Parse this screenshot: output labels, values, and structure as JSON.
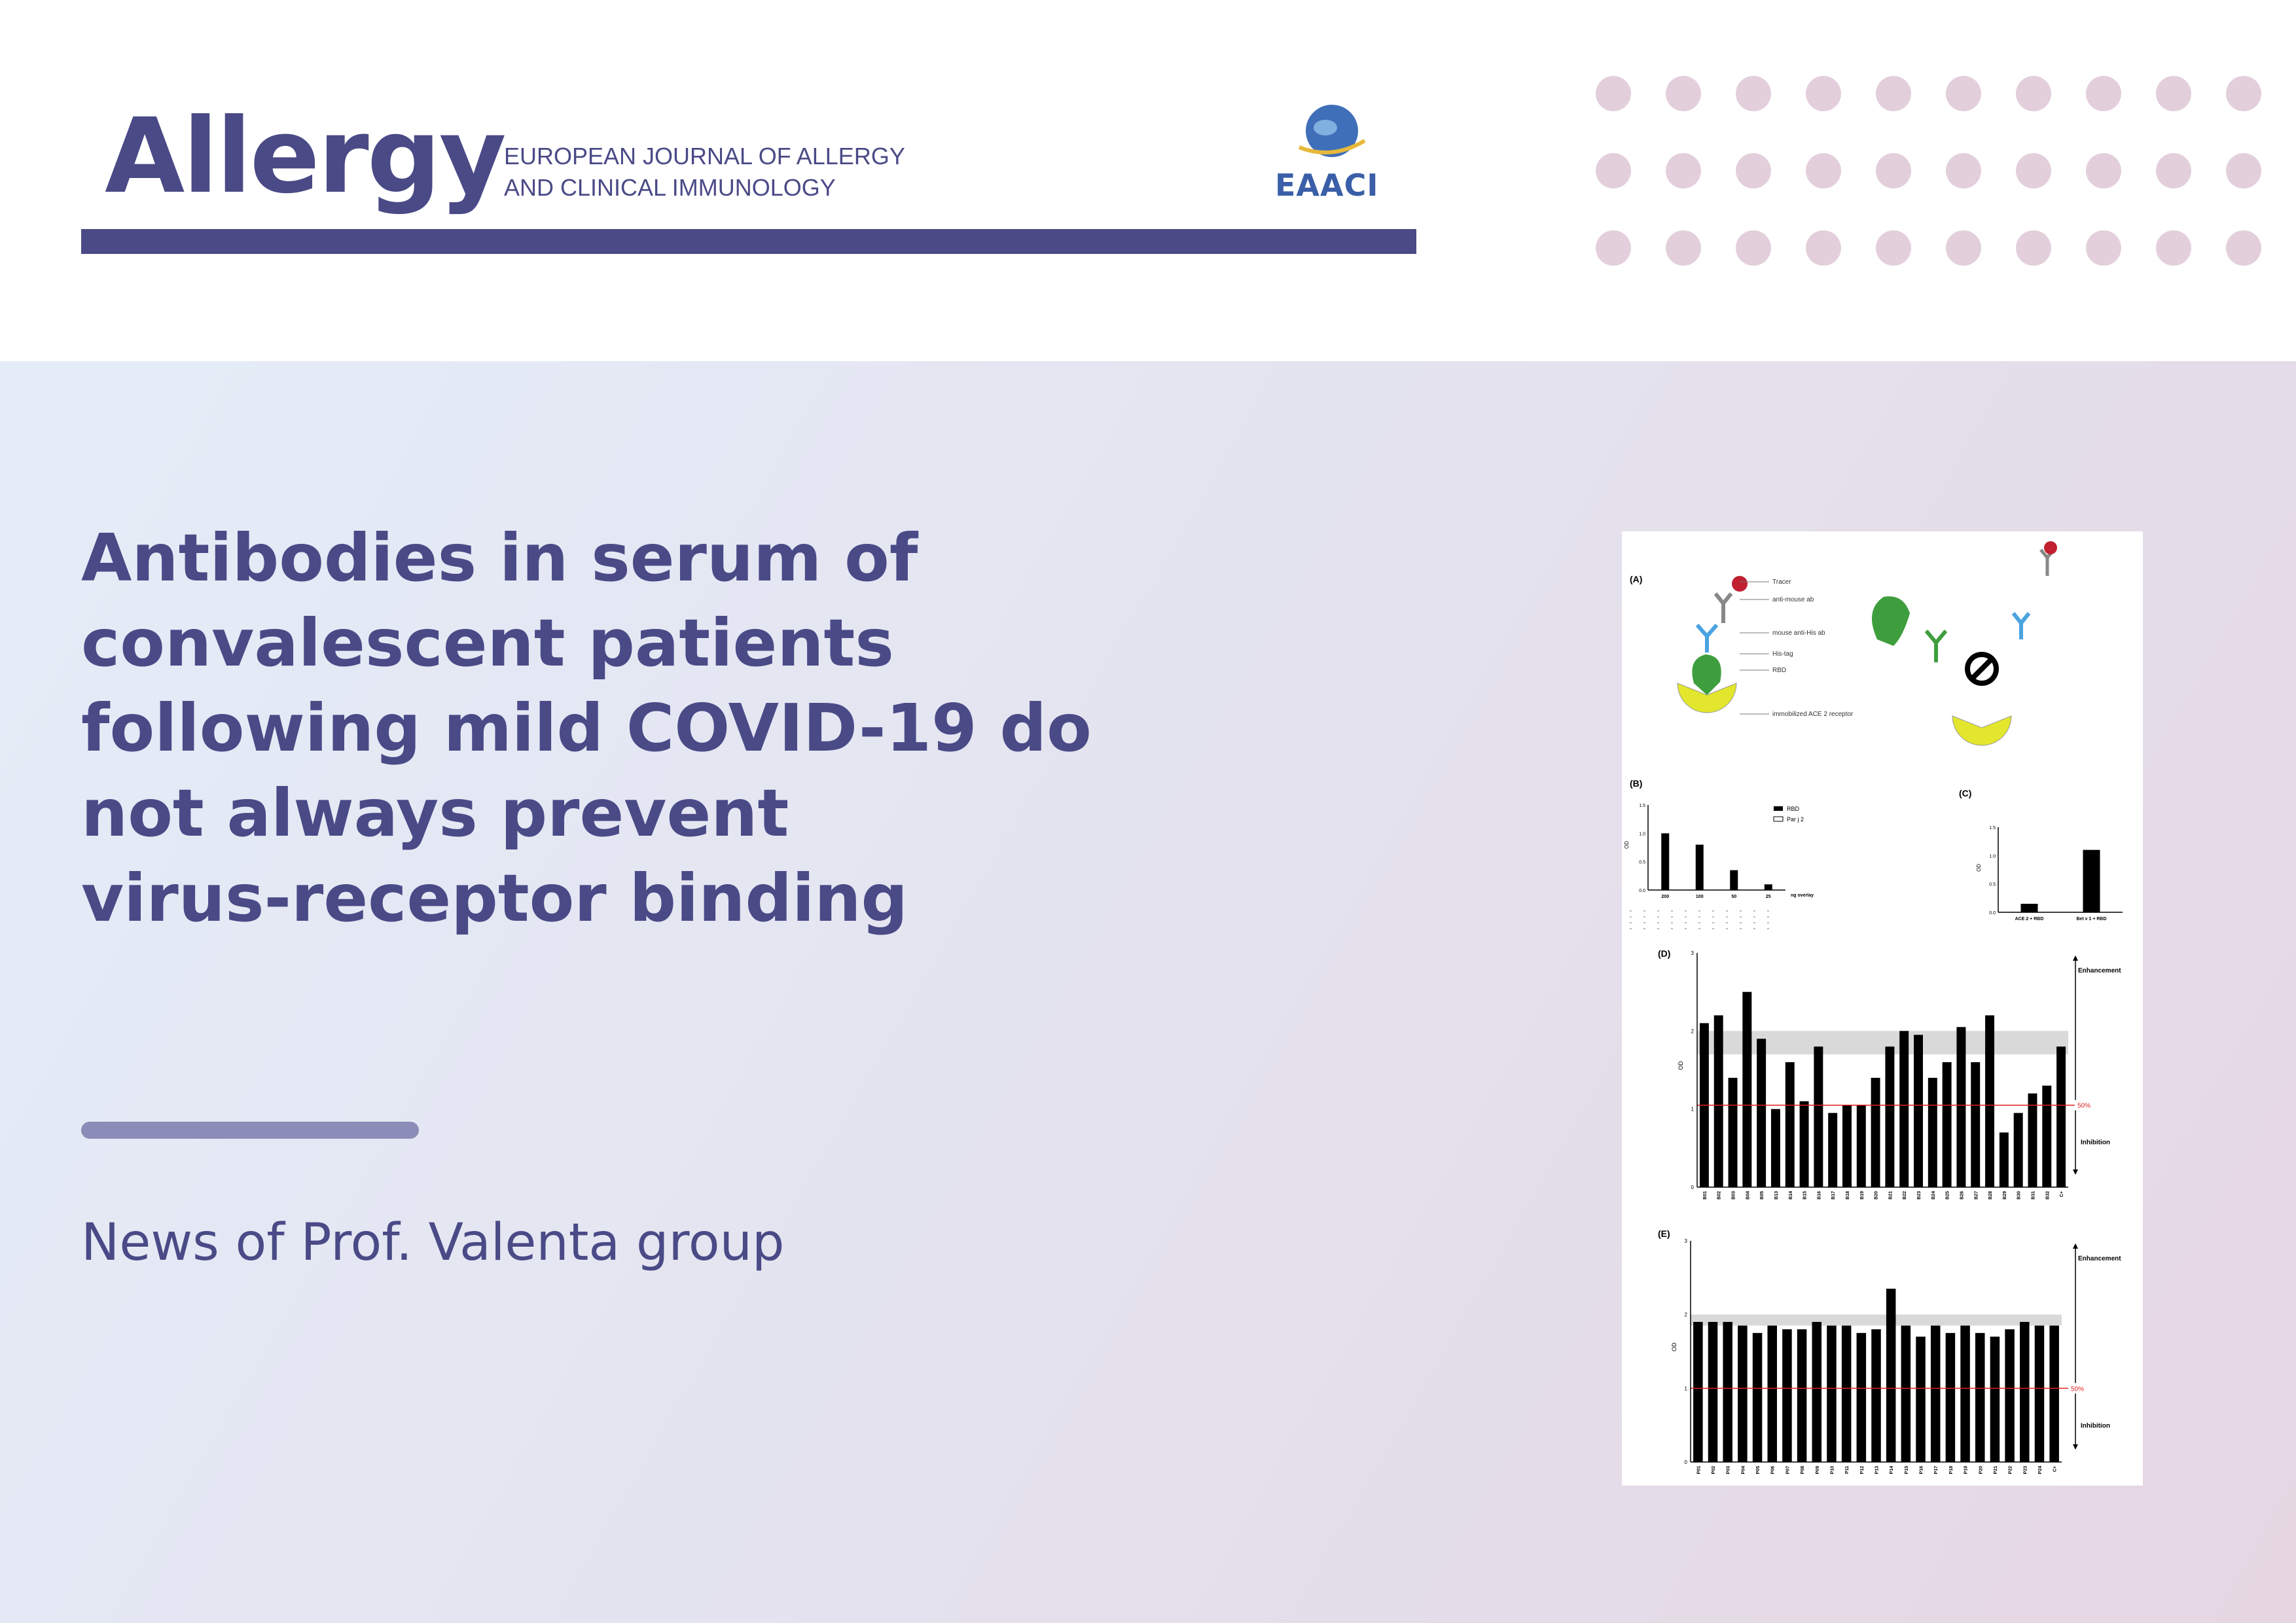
{
  "journal": {
    "logo": "Allergy",
    "subtitle_lines": [
      "EUROPEAN JOURNAL OF ALLERGY",
      "AND CLINICAL IMMUNOLOGY"
    ],
    "society_logo_text": "EAACI"
  },
  "article": {
    "title_lines": [
      "Antibodies in serum of",
      "convalescent patients",
      "following mild COVID-19 do",
      "not always prevent",
      "virus-receptor binding"
    ],
    "news_line": "News of Prof. Valenta group"
  },
  "colors": {
    "brand": "#4a4a87",
    "accent_rule": "#8c8cb8",
    "dots": "#e3cfdc"
  },
  "figure": {
    "panel_labels": [
      "(A)",
      "(B)",
      "(C)",
      "(D)",
      "(E)"
    ],
    "a_labels": [
      "Tracer",
      "anti-mouse ab",
      "mouse anti-His ab",
      "His-tag",
      "RBD",
      "immobilized ACE 2 receptor"
    ],
    "b_legend": [
      "RBD",
      "Par j 2"
    ],
    "b_x_ticks": [
      "200",
      "100",
      "50",
      "25"
    ],
    "b_x_unit": "ng overlay",
    "b_values": [
      1.0,
      0.8,
      0.35,
      0.1
    ],
    "b_y_ticks": [
      "0.0",
      "0.5",
      "1.0",
      "1.5"
    ],
    "c_categories": [
      "ACE 2 + RBD",
      "Bet v 1 + RBD"
    ],
    "c_values": [
      0.15,
      1.1
    ],
    "c_y_ticks": [
      "0.0",
      "0.5",
      "1.0",
      "1.5"
    ],
    "y_label": "OD",
    "enhancement": "Enhancement",
    "inhibition": "Inhibition",
    "fifty_label": "50%",
    "d_y_ticks": [
      "0",
      "1",
      "2",
      "3"
    ],
    "d_values": [
      2.1,
      2.2,
      1.4,
      2.5,
      1.9,
      1.0,
      1.6,
      1.1,
      1.8,
      0.95,
      1.05,
      1.05,
      1.4,
      1.8,
      2.0,
      1.95,
      1.4,
      1.6,
      2.05,
      1.6,
      2.2,
      0.7,
      0.95,
      1.2,
      1.3,
      1.8
    ],
    "d_ticks": [
      "B01",
      "B02",
      "B03",
      "B04",
      "B05",
      "B13",
      "B14",
      "B15",
      "B16",
      "B17",
      "B18",
      "B19",
      "B20",
      "B21",
      "B22",
      "B23",
      "B24",
      "B25",
      "B26",
      "B27",
      "B28",
      "B29",
      "B30",
      "B31",
      "B32",
      "C+"
    ],
    "e_y_ticks": [
      "0",
      "1",
      "2",
      "3"
    ],
    "e_values": [
      1.9,
      1.9,
      1.9,
      1.85,
      1.75,
      1.85,
      1.8,
      1.8,
      1.9,
      1.85,
      1.85,
      1.75,
      1.8,
      2.35,
      1.85,
      1.7,
      1.85,
      1.75,
      1.85,
      1.75,
      1.7,
      1.8,
      1.9,
      1.85,
      1.85
    ],
    "e_ticks": [
      "P01",
      "P02",
      "P03",
      "P04",
      "P05",
      "P06",
      "P07",
      "P08",
      "P09",
      "P10",
      "P11",
      "P12",
      "P13",
      "P14",
      "P15",
      "P16",
      "P17",
      "P18",
      "P19",
      "P20",
      "P21",
      "P22",
      "P23",
      "P24",
      "C+"
    ]
  }
}
